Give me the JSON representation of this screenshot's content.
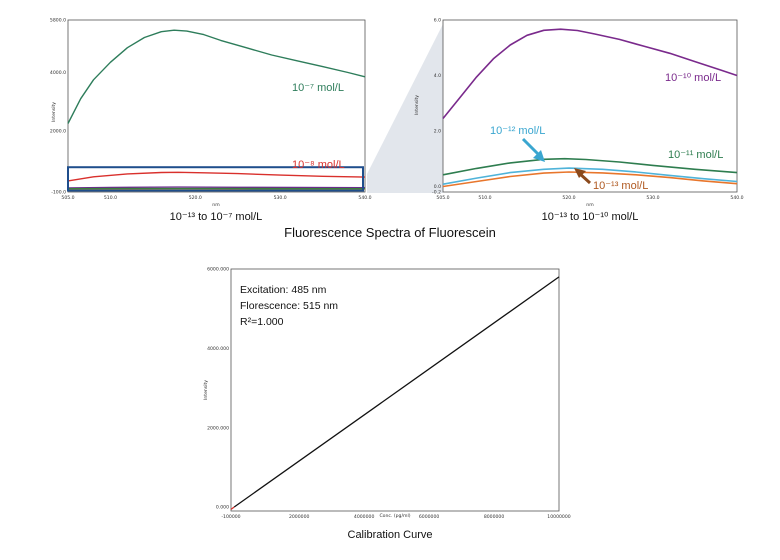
{
  "main_title": "Fluorescence Spectra of Fluorescein",
  "chart_data": [
    {
      "id": "spectra-left",
      "type": "line",
      "caption": "10⁻¹³ to 10⁻⁷ mol/L",
      "xlabel": "nm",
      "ylabel": "Intensity",
      "xlim": [
        505.0,
        540.0
      ],
      "ylim": [
        -100.0,
        5800.0
      ],
      "x_ticks": [
        505.0,
        510.0,
        520.0,
        530.0,
        540.0
      ],
      "x_tick_labels": [
        "505.0",
        "510.0",
        "520.0",
        "530.0",
        "540.0"
      ],
      "y_ticks": [
        -100.0,
        2000.0,
        4000.0,
        5800.0
      ],
      "y_tick_labels": [
        "-100.0",
        "2000.0",
        "4000.0",
        "5800.0"
      ],
      "zoom_box": {
        "x": [
          505.0,
          540.0
        ],
        "y": [
          -50.0,
          750.0
        ]
      },
      "series": [
        {
          "name": "10⁻⁷ mol/L",
          "color": "#2e7d5b",
          "x": [
            505.0,
            506.5,
            508.0,
            510.0,
            512.0,
            514.0,
            516.0,
            517.5,
            519.0,
            521.0,
            523.0,
            526.0,
            529.0,
            532.0,
            535.0,
            538.0,
            540.0
          ],
          "y": [
            2250,
            3100,
            3750,
            4350,
            4850,
            5200,
            5400,
            5450,
            5420,
            5300,
            5100,
            4850,
            4600,
            4400,
            4200,
            4000,
            3850
          ]
        },
        {
          "name": "10⁻⁸ mol/L",
          "color": "#d9302c",
          "x": [
            505.0,
            508.0,
            512.0,
            516.0,
            518.0,
            521.0,
            525.0,
            530.0,
            535.0,
            540.0
          ],
          "y": [
            280,
            420,
            520,
            570,
            575,
            560,
            530,
            480,
            440,
            410
          ]
        },
        {
          "name": "",
          "color": "#6a2d8c",
          "x": [
            505.0,
            510.0,
            518.0,
            525.0,
            532.0,
            540.0
          ],
          "y": [
            40,
            58,
            68,
            62,
            54,
            46
          ]
        },
        {
          "name": "",
          "color": "#f07a2b",
          "x": [
            505.0,
            512.0,
            518.0,
            525.0,
            532.0,
            540.0
          ],
          "y": [
            8,
            10,
            12,
            11,
            9,
            8
          ]
        },
        {
          "name": "",
          "color": "#3a7f3a",
          "x": [
            505.0,
            512.0,
            518.0,
            525.0,
            532.0,
            540.0
          ],
          "y": [
            12,
            15,
            17,
            16,
            14,
            13
          ]
        }
      ]
    },
    {
      "id": "spectra-right",
      "type": "line",
      "caption": "10⁻¹³ to 10⁻¹⁰ mol/L",
      "xlabel": "nm",
      "ylabel": "Intensity",
      "xlim": [
        505.0,
        540.0
      ],
      "ylim": [
        -0.2,
        6.0
      ],
      "x_ticks": [
        505.0,
        510.0,
        520.0,
        530.0,
        540.0
      ],
      "x_tick_labels": [
        "505.0",
        "510.0",
        "520.0",
        "530.0",
        "540.0"
      ],
      "y_ticks": [
        -0.2,
        0.0,
        2.0,
        4.0,
        6.0
      ],
      "y_tick_labels": [
        "-0.2",
        "0.0",
        "2.0",
        "4.0",
        "6.0"
      ],
      "series": [
        {
          "name": "10⁻¹⁰ mol/L",
          "color": "#7a2a8c",
          "x": [
            505.0,
            507.0,
            509.0,
            511.0,
            513.0,
            515.0,
            517.0,
            519.0,
            521.0,
            523.0,
            526.0,
            529.0,
            532.0,
            535.0,
            538.0,
            540.0
          ],
          "y": [
            2.45,
            3.2,
            3.95,
            4.6,
            5.1,
            5.45,
            5.63,
            5.67,
            5.62,
            5.5,
            5.3,
            5.05,
            4.8,
            4.5,
            4.2,
            4.0
          ]
        },
        {
          "name": "10⁻¹¹ mol/L",
          "color": "#2e7d4f",
          "x": [
            505.0,
            509.0,
            513.0,
            517.0,
            519.5,
            522.0,
            526.0,
            530.0,
            535.0,
            540.0
          ],
          "y": [
            0.42,
            0.65,
            0.85,
            0.98,
            1.0,
            0.97,
            0.88,
            0.76,
            0.62,
            0.5
          ]
        },
        {
          "name": "10⁻¹² mol/L",
          "color": "#4fb3d9",
          "x": [
            505.0,
            509.0,
            513.0,
            517.0,
            520.0,
            524.0,
            528.0,
            532.0,
            536.0,
            540.0
          ],
          "y": [
            0.08,
            0.3,
            0.5,
            0.62,
            0.66,
            0.62,
            0.52,
            0.4,
            0.28,
            0.18
          ]
        },
        {
          "name": "10⁻¹³ mol/L",
          "color": "#e8762c",
          "x": [
            505.0,
            509.0,
            513.0,
            517.0,
            520.0,
            524.0,
            528.0,
            532.0,
            536.0,
            540.0
          ],
          "y": [
            0.0,
            0.18,
            0.36,
            0.48,
            0.52,
            0.49,
            0.42,
            0.32,
            0.2,
            0.1
          ]
        }
      ]
    },
    {
      "id": "calibration",
      "type": "line",
      "caption": "Calibration Curve",
      "xlabel": "Conc. (pg/ml)",
      "ylabel": "Intensity",
      "xlim": [
        -100000,
        10000000
      ],
      "ylim": [
        -100000,
        6000000
      ],
      "x_ticks": [
        -100000,
        2000000,
        4000000,
        6000000,
        8000000,
        10000000
      ],
      "x_tick_labels": [
        "-100000",
        "2000000",
        "4000000",
        "6000000",
        "8000000",
        "10000000"
      ],
      "y_ticks": [
        0,
        2000000,
        4000000,
        6000000
      ],
      "y_tick_labels": [
        "0.000",
        "2000.000",
        "4000.000",
        "6000.000"
      ],
      "annotations": [
        "Excitation: 485 nm",
        "Florescence: 515 nm",
        "R²=1.000"
      ],
      "series": [
        {
          "name": "",
          "color": "#111111",
          "x": [
            0,
            10000000
          ],
          "y": [
            0,
            5800000
          ]
        },
        {
          "name": "",
          "color": "#d9302c",
          "x": [
            -100000,
            0
          ],
          "y": [
            -60000,
            0
          ]
        }
      ]
    }
  ]
}
